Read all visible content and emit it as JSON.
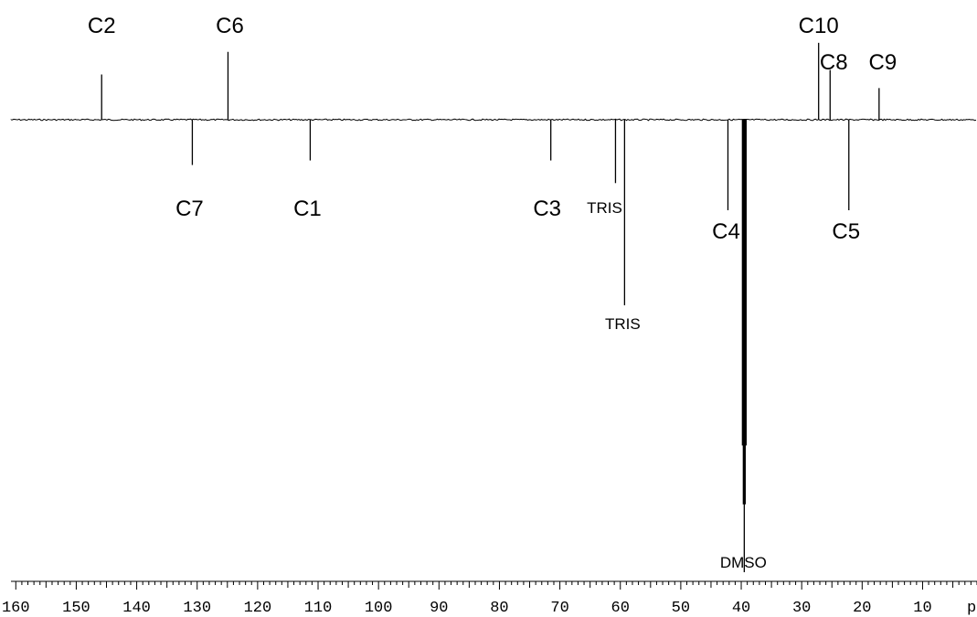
{
  "chart_data": {
    "type": "line",
    "title": "",
    "xlabel": "",
    "unit_label": "ppm",
    "xlim": [
      160.8,
      1.0
    ],
    "x_ticks": [
      160,
      150,
      140,
      130,
      120,
      110,
      100,
      90,
      80,
      70,
      60,
      50,
      40,
      30,
      20,
      10
    ],
    "baseline_intensity": 0,
    "ylim": [
      -100,
      15
    ],
    "peaks": [
      {
        "label": "C2",
        "ppm": 145.8,
        "intensity": 10
      },
      {
        "label": "C6",
        "ppm": 124.9,
        "intensity": 15
      },
      {
        "label": "C7",
        "ppm": 130.8,
        "intensity": -10
      },
      {
        "label": "C1",
        "ppm": 111.3,
        "intensity": -9
      },
      {
        "label": "C3",
        "ppm": 71.5,
        "intensity": -9
      },
      {
        "label": "TRIS",
        "ppm": 60.8,
        "intensity": -14
      },
      {
        "label": "TRIS",
        "ppm": 59.3,
        "intensity": -41
      },
      {
        "label": "C4",
        "ppm": 42.2,
        "intensity": -20
      },
      {
        "label": "DMSO",
        "ppm": 39.5,
        "intensity": -100
      },
      {
        "label": "C10",
        "ppm": 27.2,
        "intensity": 17
      },
      {
        "label": "C8",
        "ppm": 25.3,
        "intensity": 11
      },
      {
        "label": "C5",
        "ppm": 22.2,
        "intensity": -20
      },
      {
        "label": "C9",
        "ppm": 17.2,
        "intensity": 7
      }
    ]
  }
}
